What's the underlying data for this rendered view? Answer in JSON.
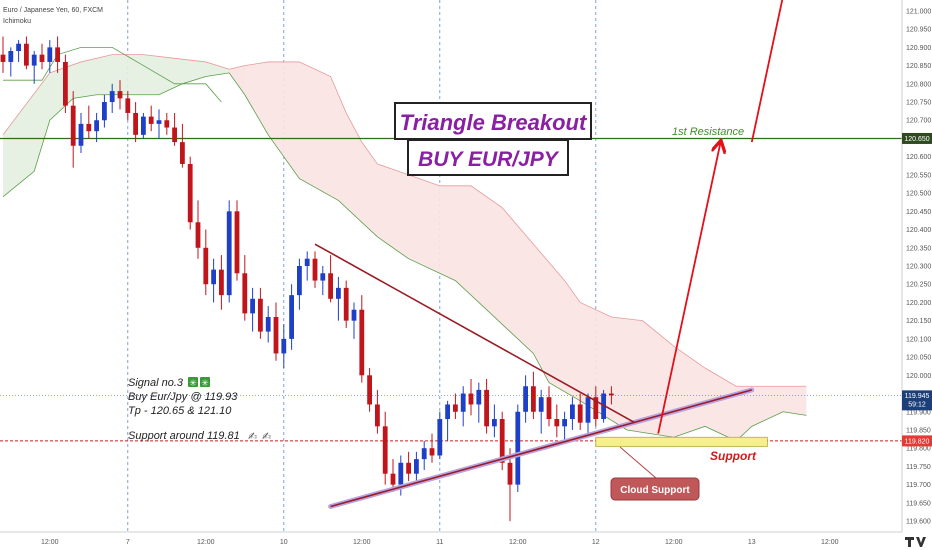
{
  "header": {
    "symbol_line": "Euro / Japanese Yen, 60, FXCM",
    "indicator_line": "Ichimoku"
  },
  "annotations": {
    "title": "Triangle Breakout",
    "subtitle": "BUY EUR/JPY",
    "resistance_label": "1st Resistance",
    "support_label": "Support",
    "cloud_support_label": "Cloud Support",
    "signal_lines": [
      "Signal no.3",
      "Buy Eur/Jpy @ 119.93",
      "Tp - 120.65 & 121.10",
      "Support around 119.81"
    ]
  },
  "price_badges": {
    "resistance": "120.650",
    "current": "119.945",
    "countdown": "59:12",
    "support": "119.820"
  },
  "colors": {
    "bull_candle": "#1e40c8",
    "bear_candle": "#c0151b",
    "triangle_upper": "#9a1c25",
    "triangle_lower": "#9a1c25",
    "arrow": "#e3101a",
    "resistance_line": "#2f6b1f",
    "support_line": "#d21a1a",
    "current_line": "#4a6fd6",
    "cloud_bull": "#5a9e4b",
    "cloud_bear": "#e59a9a",
    "title_purple": "#8a1fa3",
    "badge_support": "#e53935",
    "badge_current": "#1c3f7a"
  },
  "chart_data": {
    "type": "candlestick",
    "title": "",
    "xlabel": "",
    "ylabel": "",
    "ylim": [
      119.57,
      121.03
    ],
    "y_ticks": [
      "121.000",
      "120.950",
      "120.900",
      "120.850",
      "120.800",
      "120.750",
      "120.700",
      "120.650",
      "120.600",
      "120.550",
      "120.500",
      "120.450",
      "120.400",
      "120.350",
      "120.300",
      "120.250",
      "120.200",
      "120.150",
      "120.100",
      "120.050",
      "120.000",
      "119.950",
      "119.900",
      "119.850",
      "119.800",
      "119.750",
      "119.700",
      "119.650",
      "119.600"
    ],
    "x_ticks": [
      {
        "label": "12:00",
        "i": 6
      },
      {
        "label": "7",
        "i": 16
      },
      {
        "label": "12:00",
        "i": 26
      },
      {
        "label": "10",
        "i": 36
      },
      {
        "label": "12:00",
        "i": 46
      },
      {
        "label": "11",
        "i": 56
      },
      {
        "label": "12:00",
        "i": 66
      },
      {
        "label": "12",
        "i": 76
      },
      {
        "label": "12:00",
        "i": 86
      },
      {
        "label": "13",
        "i": 96
      },
      {
        "label": "12:00",
        "i": 106
      }
    ],
    "x_count": 114,
    "candles": [
      {
        "o": 120.88,
        "h": 120.93,
        "l": 120.83,
        "c": 120.86
      },
      {
        "o": 120.86,
        "h": 120.9,
        "l": 120.82,
        "c": 120.89
      },
      {
        "o": 120.89,
        "h": 120.92,
        "l": 120.86,
        "c": 120.91
      },
      {
        "o": 120.91,
        "h": 120.93,
        "l": 120.84,
        "c": 120.85
      },
      {
        "o": 120.85,
        "h": 120.89,
        "l": 120.8,
        "c": 120.88
      },
      {
        "o": 120.88,
        "h": 120.91,
        "l": 120.84,
        "c": 120.86
      },
      {
        "o": 120.86,
        "h": 120.92,
        "l": 120.83,
        "c": 120.9
      },
      {
        "o": 120.9,
        "h": 120.93,
        "l": 120.83,
        "c": 120.86
      },
      {
        "o": 120.86,
        "h": 120.88,
        "l": 120.72,
        "c": 120.74
      },
      {
        "o": 120.74,
        "h": 120.78,
        "l": 120.57,
        "c": 120.63
      },
      {
        "o": 120.63,
        "h": 120.72,
        "l": 120.61,
        "c": 120.69
      },
      {
        "o": 120.69,
        "h": 120.74,
        "l": 120.65,
        "c": 120.67
      },
      {
        "o": 120.67,
        "h": 120.72,
        "l": 120.64,
        "c": 120.7
      },
      {
        "o": 120.7,
        "h": 120.77,
        "l": 120.68,
        "c": 120.75
      },
      {
        "o": 120.75,
        "h": 120.8,
        "l": 120.72,
        "c": 120.78
      },
      {
        "o": 120.78,
        "h": 120.81,
        "l": 120.73,
        "c": 120.76
      },
      {
        "o": 120.76,
        "h": 120.78,
        "l": 120.7,
        "c": 120.72
      },
      {
        "o": 120.72,
        "h": 120.75,
        "l": 120.64,
        "c": 120.66
      },
      {
        "o": 120.66,
        "h": 120.72,
        "l": 120.65,
        "c": 120.71
      },
      {
        "o": 120.71,
        "h": 120.74,
        "l": 120.67,
        "c": 120.69
      },
      {
        "o": 120.69,
        "h": 120.73,
        "l": 120.65,
        "c": 120.7
      },
      {
        "o": 120.7,
        "h": 120.72,
        "l": 120.66,
        "c": 120.68
      },
      {
        "o": 120.68,
        "h": 120.72,
        "l": 120.63,
        "c": 120.64
      },
      {
        "o": 120.64,
        "h": 120.69,
        "l": 120.57,
        "c": 120.58
      },
      {
        "o": 120.58,
        "h": 120.6,
        "l": 120.4,
        "c": 120.42
      },
      {
        "o": 120.42,
        "h": 120.48,
        "l": 120.32,
        "c": 120.35
      },
      {
        "o": 120.35,
        "h": 120.4,
        "l": 120.22,
        "c": 120.25
      },
      {
        "o": 120.25,
        "h": 120.32,
        "l": 120.2,
        "c": 120.29
      },
      {
        "o": 120.29,
        "h": 120.33,
        "l": 120.18,
        "c": 120.22
      },
      {
        "o": 120.22,
        "h": 120.48,
        "l": 120.2,
        "c": 120.45
      },
      {
        "o": 120.45,
        "h": 120.48,
        "l": 120.26,
        "c": 120.28
      },
      {
        "o": 120.28,
        "h": 120.33,
        "l": 120.15,
        "c": 120.17
      },
      {
        "o": 120.17,
        "h": 120.24,
        "l": 120.12,
        "c": 120.21
      },
      {
        "o": 120.21,
        "h": 120.24,
        "l": 120.1,
        "c": 120.12
      },
      {
        "o": 120.12,
        "h": 120.19,
        "l": 120.09,
        "c": 120.16
      },
      {
        "o": 120.16,
        "h": 120.2,
        "l": 120.04,
        "c": 120.06
      },
      {
        "o": 120.06,
        "h": 120.14,
        "l": 120.02,
        "c": 120.1
      },
      {
        "o": 120.1,
        "h": 120.25,
        "l": 120.07,
        "c": 120.22
      },
      {
        "o": 120.22,
        "h": 120.32,
        "l": 120.18,
        "c": 120.3
      },
      {
        "o": 120.3,
        "h": 120.34,
        "l": 120.26,
        "c": 120.32
      },
      {
        "o": 120.32,
        "h": 120.34,
        "l": 120.24,
        "c": 120.26
      },
      {
        "o": 120.26,
        "h": 120.3,
        "l": 120.22,
        "c": 120.28
      },
      {
        "o": 120.28,
        "h": 120.33,
        "l": 120.2,
        "c": 120.21
      },
      {
        "o": 120.21,
        "h": 120.27,
        "l": 120.15,
        "c": 120.24
      },
      {
        "o": 120.24,
        "h": 120.26,
        "l": 120.13,
        "c": 120.15
      },
      {
        "o": 120.15,
        "h": 120.2,
        "l": 120.1,
        "c": 120.18
      },
      {
        "o": 120.18,
        "h": 120.22,
        "l": 119.98,
        "c": 120.0
      },
      {
        "o": 120.0,
        "h": 120.02,
        "l": 119.9,
        "c": 119.92
      },
      {
        "o": 119.92,
        "h": 119.96,
        "l": 119.84,
        "c": 119.86
      },
      {
        "o": 119.86,
        "h": 119.9,
        "l": 119.7,
        "c": 119.73
      },
      {
        "o": 119.73,
        "h": 119.77,
        "l": 119.68,
        "c": 119.7
      },
      {
        "o": 119.7,
        "h": 119.78,
        "l": 119.67,
        "c": 119.76
      },
      {
        "o": 119.76,
        "h": 119.79,
        "l": 119.71,
        "c": 119.73
      },
      {
        "o": 119.73,
        "h": 119.79,
        "l": 119.7,
        "c": 119.77
      },
      {
        "o": 119.77,
        "h": 119.82,
        "l": 119.74,
        "c": 119.8
      },
      {
        "o": 119.8,
        "h": 119.84,
        "l": 119.76,
        "c": 119.78
      },
      {
        "o": 119.78,
        "h": 119.9,
        "l": 119.77,
        "c": 119.88
      },
      {
        "o": 119.88,
        "h": 119.93,
        "l": 119.82,
        "c": 119.92
      },
      {
        "o": 119.92,
        "h": 119.95,
        "l": 119.88,
        "c": 119.9
      },
      {
        "o": 119.9,
        "h": 119.97,
        "l": 119.86,
        "c": 119.95
      },
      {
        "o": 119.95,
        "h": 119.99,
        "l": 119.89,
        "c": 119.92
      },
      {
        "o": 119.92,
        "h": 119.98,
        "l": 119.87,
        "c": 119.96
      },
      {
        "o": 119.96,
        "h": 119.99,
        "l": 119.84,
        "c": 119.86
      },
      {
        "o": 119.86,
        "h": 119.92,
        "l": 119.83,
        "c": 119.88
      },
      {
        "o": 119.88,
        "h": 119.9,
        "l": 119.74,
        "c": 119.76
      },
      {
        "o": 119.76,
        "h": 119.8,
        "l": 119.6,
        "c": 119.7
      },
      {
        "o": 119.7,
        "h": 119.92,
        "l": 119.68,
        "c": 119.9
      },
      {
        "o": 119.9,
        "h": 120.0,
        "l": 119.87,
        "c": 119.97
      },
      {
        "o": 119.97,
        "h": 120.01,
        "l": 119.88,
        "c": 119.9
      },
      {
        "o": 119.9,
        "h": 119.96,
        "l": 119.84,
        "c": 119.94
      },
      {
        "o": 119.94,
        "h": 119.97,
        "l": 119.86,
        "c": 119.88
      },
      {
        "o": 119.88,
        "h": 119.92,
        "l": 119.83,
        "c": 119.86
      },
      {
        "o": 119.86,
        "h": 119.9,
        "l": 119.82,
        "c": 119.88
      },
      {
        "o": 119.88,
        "h": 119.94,
        "l": 119.85,
        "c": 119.92
      },
      {
        "o": 119.92,
        "h": 119.95,
        "l": 119.85,
        "c": 119.87
      },
      {
        "o": 119.87,
        "h": 119.95,
        "l": 119.84,
        "c": 119.94
      },
      {
        "o": 119.94,
        "h": 119.97,
        "l": 119.86,
        "c": 119.88
      },
      {
        "o": 119.88,
        "h": 119.96,
        "l": 119.87,
        "c": 119.95
      },
      {
        "o": 119.95,
        "h": 119.97,
        "l": 119.92,
        "c": 119.945
      }
    ],
    "cloud_span_a": [
      [
        0,
        120.49
      ],
      [
        4,
        120.56
      ],
      [
        6,
        120.7
      ],
      [
        9,
        120.76
      ],
      [
        12,
        120.77
      ],
      [
        16,
        120.77
      ],
      [
        20,
        120.77
      ],
      [
        23,
        120.8
      ],
      [
        26,
        120.82
      ],
      [
        29,
        120.83
      ],
      [
        31,
        120.77
      ],
      [
        34,
        120.66
      ],
      [
        38,
        120.54
      ],
      [
        43,
        120.48
      ],
      [
        48,
        120.38
      ],
      [
        52,
        120.32
      ],
      [
        58,
        120.26
      ],
      [
        62,
        120.18
      ],
      [
        68,
        120.06
      ],
      [
        70,
        119.98
      ],
      [
        74,
        119.93
      ],
      [
        80,
        119.85
      ],
      [
        86,
        119.83
      ],
      [
        90,
        119.86
      ],
      [
        94,
        119.82
      ],
      [
        96,
        119.86
      ],
      [
        100,
        119.9
      ],
      [
        103,
        119.89
      ]
    ],
    "cloud_span_b": [
      [
        0,
        120.66
      ],
      [
        6,
        120.83
      ],
      [
        10,
        120.86
      ],
      [
        14,
        120.88
      ],
      [
        18,
        120.88
      ],
      [
        22,
        120.87
      ],
      [
        26,
        120.86
      ],
      [
        29,
        120.84
      ],
      [
        31,
        120.85
      ],
      [
        34,
        120.86
      ],
      [
        38,
        120.86
      ],
      [
        42,
        120.82
      ],
      [
        44,
        120.72
      ],
      [
        46,
        120.64
      ],
      [
        48,
        120.58
      ],
      [
        52,
        120.55
      ],
      [
        56,
        120.52
      ],
      [
        60,
        120.52
      ],
      [
        64,
        120.46
      ],
      [
        68,
        120.36
      ],
      [
        72,
        120.26
      ],
      [
        74,
        120.2
      ],
      [
        78,
        120.16
      ],
      [
        82,
        120.15
      ],
      [
        86,
        120.08
      ],
      [
        90,
        120.02
      ],
      [
        94,
        119.97
      ],
      [
        100,
        119.97
      ],
      [
        103,
        119.97
      ]
    ],
    "kijun": [
      [
        0,
        120.81
      ],
      [
        5,
        120.81
      ],
      [
        7,
        120.88
      ],
      [
        10,
        120.9
      ],
      [
        14,
        120.9
      ],
      [
        18,
        120.85
      ],
      [
        22,
        120.8
      ],
      [
        26,
        120.8
      ],
      [
        28,
        120.75
      ]
    ],
    "triangle_upper": {
      "from": [
        40,
        120.36
      ],
      "to": [
        81,
        119.87
      ]
    },
    "triangle_lower": {
      "from": [
        42,
        119.64
      ],
      "to": [
        96,
        119.96
      ]
    },
    "arrow": {
      "from": [
        84,
        119.84
      ],
      "to": [
        92,
        120.64
      ]
    },
    "arrow2": {
      "from": [
        96,
        120.64
      ],
      "to": [
        100,
        121.04
      ]
    },
    "resistance_level": 120.65,
    "support_level": 119.82,
    "current_price": 119.945,
    "support_zone": {
      "x0": 76,
      "x1": 98,
      "y0": 119.805,
      "y1": 119.83
    },
    "vertical_lines": [
      16,
      36,
      56,
      76
    ]
  }
}
